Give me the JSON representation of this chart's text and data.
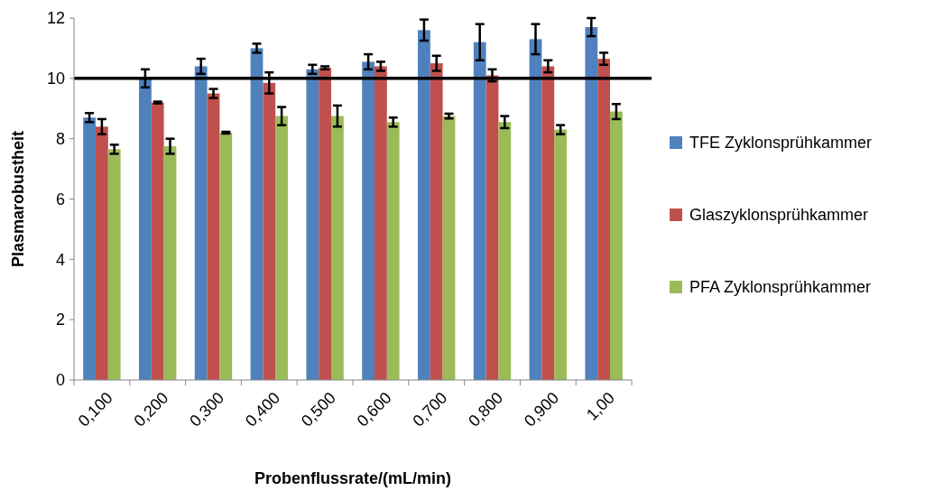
{
  "chart_data": {
    "type": "bar",
    "xlabel": "Probenflussrate/(mL/min)",
    "ylabel": "Plasmarobustheit",
    "categories": [
      "0,100",
      "0,200",
      "0,300",
      "0,400",
      "0,500",
      "0,600",
      "0,700",
      "0,800",
      "0,900",
      "1,00"
    ],
    "series": [
      {
        "name": "TFE Zyklonsprühkammer",
        "color": "#4f81bd",
        "values": [
          8.7,
          10.0,
          10.4,
          11.0,
          10.3,
          10.55,
          11.6,
          11.2,
          11.3,
          11.7
        ],
        "errors": [
          0.15,
          0.3,
          0.25,
          0.15,
          0.15,
          0.25,
          0.35,
          0.6,
          0.5,
          0.3
        ]
      },
      {
        "name": "Glaszyklonsprühkammer",
        "color": "#c0504d",
        "values": [
          8.4,
          9.2,
          9.5,
          9.85,
          10.35,
          10.4,
          10.5,
          10.1,
          10.4,
          10.65
        ],
        "errors": [
          0.25,
          0.03,
          0.15,
          0.35,
          0.05,
          0.15,
          0.25,
          0.2,
          0.2,
          0.2
        ]
      },
      {
        "name": "PFA Zyklonsprühkammer",
        "color": "#9bbb59",
        "values": [
          7.65,
          7.75,
          8.2,
          8.75,
          8.75,
          8.55,
          8.75,
          8.55,
          8.3,
          8.9
        ],
        "errors": [
          0.15,
          0.25,
          0.03,
          0.3,
          0.35,
          0.15,
          0.08,
          0.2,
          0.15,
          0.25
        ]
      }
    ],
    "ylim": [
      0,
      12
    ],
    "yticks": [
      0,
      2,
      4,
      6,
      8,
      10,
      12
    ],
    "grid": false,
    "legend": "right",
    "ref_lines": [
      {
        "axis": "y",
        "value": 10,
        "color": "#000000"
      }
    ]
  }
}
